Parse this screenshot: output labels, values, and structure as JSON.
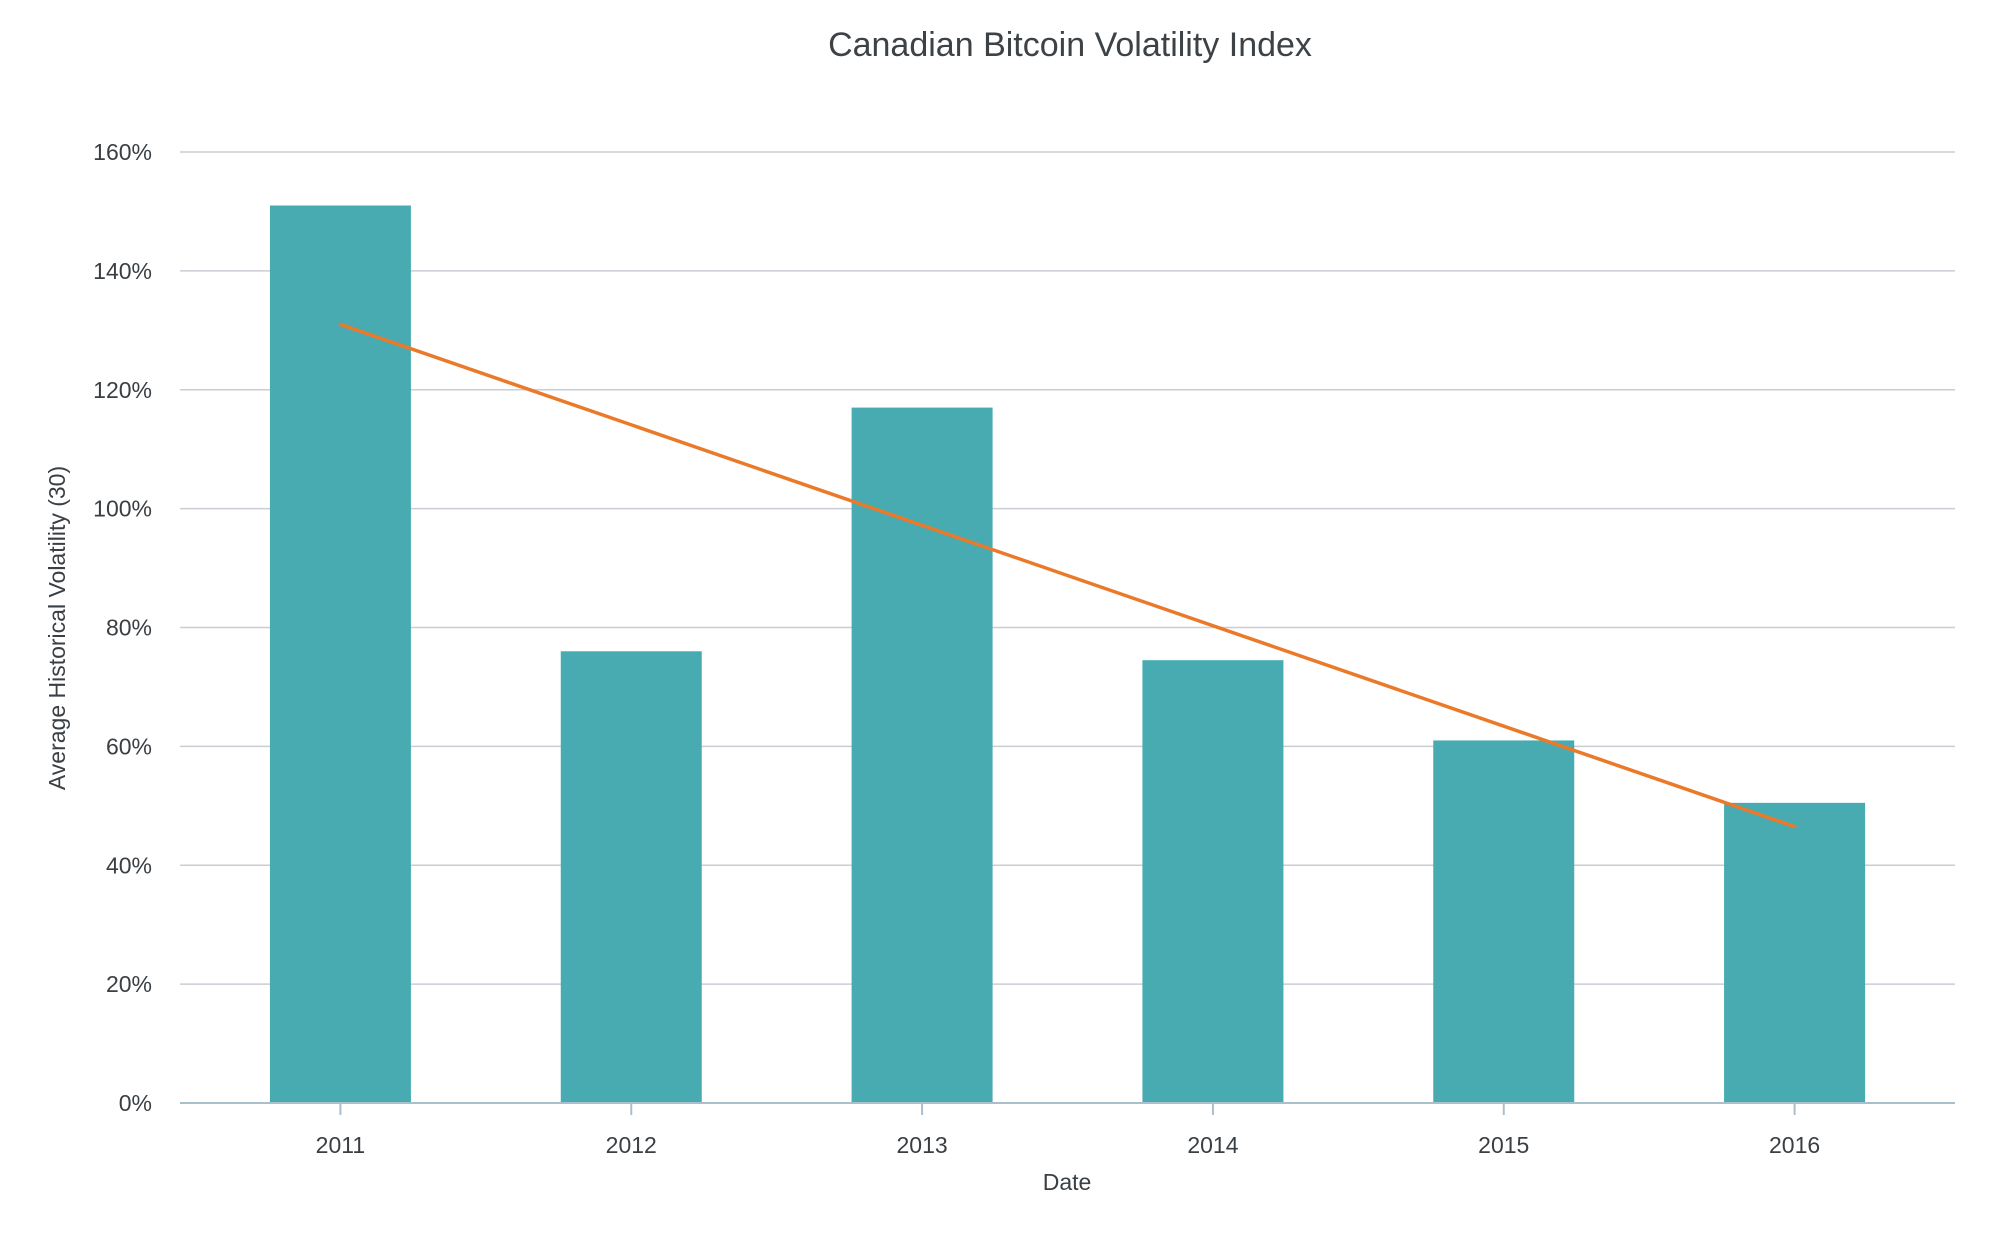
{
  "chart_data": {
    "type": "bar",
    "title": "Canadian Bitcoin Volatility Index",
    "xlabel": "Date",
    "ylabel": "Average Historical Volatility (30)",
    "categories": [
      "2011",
      "2012",
      "2013",
      "2014",
      "2015",
      "2016"
    ],
    "values": [
      151,
      76,
      117,
      74.5,
      61,
      50.5
    ],
    "ylim": [
      0,
      160
    ],
    "yticks": [
      0,
      20,
      40,
      60,
      80,
      100,
      120,
      140,
      160
    ],
    "ytick_labels": [
      "0%",
      "20%",
      "40%",
      "60%",
      "80%",
      "100%",
      "120%",
      "140%",
      "160%"
    ],
    "trendline": {
      "start": {
        "category": "2011",
        "value": 131
      },
      "end": {
        "category": "2016",
        "value": 46.5
      }
    },
    "grid": true,
    "legend": "none",
    "bar_color": "#48abb1",
    "trend_color": "#ea7a2a",
    "grid_color": "#c9ced4",
    "axis_color": "#a9bfcc"
  }
}
